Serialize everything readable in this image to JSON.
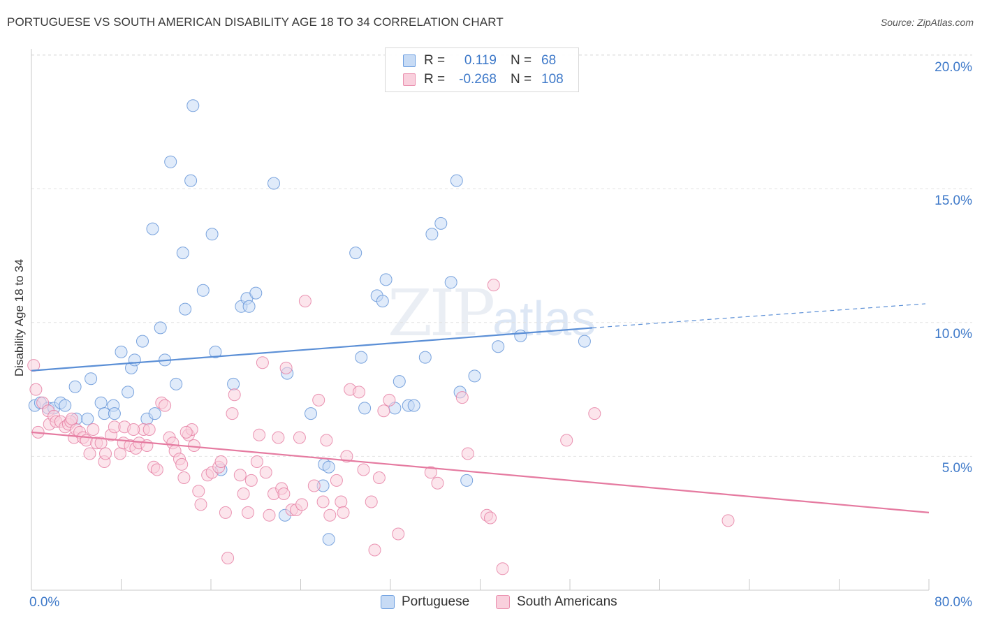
{
  "title": "PORTUGUESE VS SOUTH AMERICAN DISABILITY AGE 18 TO 34 CORRELATION CHART",
  "source": "Source: ZipAtlas.com",
  "watermark": {
    "zip": "ZIP",
    "atlas": "atlas"
  },
  "legend": {
    "rows": [
      {
        "r_label": "R =",
        "r_value": "0.119",
        "n_label": "N =",
        "n_value": "68",
        "color": "#6b9ee0",
        "fill": "#c7dbf5"
      },
      {
        "r_label": "R =",
        "r_value": "-0.268",
        "n_label": "N =",
        "n_value": "108",
        "color": "#ea8fae",
        "fill": "#f9d0dd"
      }
    ]
  },
  "bottom_legend": [
    {
      "label": "Portuguese",
      "color": "#6b9ee0",
      "fill": "#c7dbf5"
    },
    {
      "label": "South Americans",
      "color": "#ea8fae",
      "fill": "#f9d0dd"
    }
  ],
  "axes": {
    "ylabel": "Disability Age 18 to 34",
    "y_ticks": [
      "20.0%",
      "15.0%",
      "10.0%",
      "5.0%"
    ],
    "x_min_label": "0.0%",
    "x_max_label": "80.0%"
  },
  "chart_data": {
    "type": "scatter",
    "title": "PORTUGUESE VS SOUTH AMERICAN DISABILITY AGE 18 TO 34 CORRELATION CHART",
    "xlabel": "",
    "ylabel": "Disability Age 18 to 34",
    "xlim": [
      0,
      80
    ],
    "ylim": [
      0,
      20.5
    ],
    "y_tick_values": [
      5,
      10,
      15,
      20
    ],
    "grid": true,
    "legend_position": "top-center",
    "series": [
      {
        "name": "Portuguese",
        "color": "#5b8fd6",
        "fill": "#c7dbf5",
        "r": 0.119,
        "n": 68,
        "trend": {
          "x0": 0,
          "y0": 8.2,
          "x1": 50,
          "y1": 9.8,
          "dash_to_x": 80,
          "dash_to_y": 10.7
        },
        "points": [
          [
            0.3,
            6.9
          ],
          [
            0.8,
            7.0
          ],
          [
            1.5,
            6.8
          ],
          [
            2.0,
            6.8
          ],
          [
            2.6,
            7.0
          ],
          [
            3.0,
            6.9
          ],
          [
            3.9,
            7.6
          ],
          [
            4.0,
            6.4
          ],
          [
            5.0,
            6.4
          ],
          [
            5.3,
            7.9
          ],
          [
            6.2,
            7.0
          ],
          [
            6.5,
            6.6
          ],
          [
            7.3,
            6.9
          ],
          [
            7.4,
            6.6
          ],
          [
            8.0,
            8.9
          ],
          [
            8.6,
            7.4
          ],
          [
            8.9,
            8.3
          ],
          [
            9.2,
            8.6
          ],
          [
            9.9,
            9.3
          ],
          [
            10.3,
            6.4
          ],
          [
            10.8,
            13.5
          ],
          [
            11.0,
            6.6
          ],
          [
            11.5,
            9.8
          ],
          [
            11.9,
            8.6
          ],
          [
            12.4,
            16.0
          ],
          [
            12.9,
            7.7
          ],
          [
            13.5,
            12.6
          ],
          [
            13.7,
            10.5
          ],
          [
            14.2,
            15.3
          ],
          [
            14.4,
            18.1
          ],
          [
            15.3,
            11.2
          ],
          [
            16.1,
            13.3
          ],
          [
            16.4,
            8.9
          ],
          [
            16.9,
            4.5
          ],
          [
            18.0,
            7.7
          ],
          [
            18.7,
            10.6
          ],
          [
            19.2,
            10.9
          ],
          [
            19.4,
            10.6
          ],
          [
            20.0,
            11.1
          ],
          [
            21.6,
            15.2
          ],
          [
            22.6,
            2.8
          ],
          [
            22.8,
            8.1
          ],
          [
            24.9,
            6.6
          ],
          [
            26.0,
            3.9
          ],
          [
            26.1,
            4.7
          ],
          [
            26.5,
            4.6
          ],
          [
            26.5,
            1.9
          ],
          [
            28.9,
            12.6
          ],
          [
            29.4,
            8.7
          ],
          [
            29.7,
            6.8
          ],
          [
            30.8,
            11.0
          ],
          [
            31.3,
            10.8
          ],
          [
            31.6,
            11.6
          ],
          [
            32.4,
            6.8
          ],
          [
            32.8,
            7.8
          ],
          [
            33.6,
            6.9
          ],
          [
            34.1,
            6.9
          ],
          [
            35.1,
            8.7
          ],
          [
            35.7,
            13.3
          ],
          [
            36.5,
            13.7
          ],
          [
            37.4,
            11.5
          ],
          [
            37.9,
            15.3
          ],
          [
            38.2,
            7.4
          ],
          [
            38.8,
            4.1
          ],
          [
            39.5,
            8.0
          ],
          [
            41.6,
            9.1
          ],
          [
            43.6,
            9.5
          ],
          [
            49.3,
            9.3
          ]
        ]
      },
      {
        "name": "South Americans",
        "color": "#e57aa0",
        "fill": "#f9d0dd",
        "r": -0.268,
        "n": 108,
        "trend": {
          "x0": 0,
          "y0": 5.9,
          "x1": 80,
          "y1": 2.9
        },
        "points": [
          [
            0.2,
            8.4
          ],
          [
            0.4,
            7.5
          ],
          [
            1.0,
            7.0
          ],
          [
            1.5,
            6.7
          ],
          [
            1.6,
            6.2
          ],
          [
            2.0,
            6.5
          ],
          [
            2.2,
            6.3
          ],
          [
            2.6,
            6.3
          ],
          [
            3.0,
            6.1
          ],
          [
            3.3,
            6.2
          ],
          [
            3.5,
            6.3
          ],
          [
            3.8,
            5.7
          ],
          [
            4.0,
            6.0
          ],
          [
            4.3,
            5.9
          ],
          [
            4.6,
            5.7
          ],
          [
            4.9,
            5.6
          ],
          [
            5.2,
            5.1
          ],
          [
            5.5,
            6.0
          ],
          [
            5.8,
            5.5
          ],
          [
            6.2,
            5.5
          ],
          [
            6.5,
            4.8
          ],
          [
            6.6,
            5.1
          ],
          [
            7.1,
            5.8
          ],
          [
            7.4,
            6.1
          ],
          [
            7.9,
            5.1
          ],
          [
            8.2,
            5.5
          ],
          [
            8.3,
            6.1
          ],
          [
            8.8,
            5.4
          ],
          [
            9.3,
            5.3
          ],
          [
            9.6,
            5.5
          ],
          [
            10.0,
            6.0
          ],
          [
            10.3,
            5.4
          ],
          [
            10.5,
            6.0
          ],
          [
            10.9,
            4.6
          ],
          [
            11.2,
            4.5
          ],
          [
            11.6,
            7.0
          ],
          [
            11.9,
            6.9
          ],
          [
            12.3,
            5.7
          ],
          [
            12.6,
            5.5
          ],
          [
            12.8,
            5.2
          ],
          [
            13.2,
            4.9
          ],
          [
            13.4,
            4.7
          ],
          [
            13.6,
            4.2
          ],
          [
            14.0,
            5.8
          ],
          [
            14.3,
            6.0
          ],
          [
            14.5,
            5.4
          ],
          [
            14.9,
            3.7
          ],
          [
            15.1,
            3.2
          ],
          [
            15.7,
            4.3
          ],
          [
            16.1,
            4.4
          ],
          [
            16.7,
            4.6
          ],
          [
            16.9,
            4.8
          ],
          [
            17.3,
            2.9
          ],
          [
            17.5,
            1.2
          ],
          [
            17.9,
            6.6
          ],
          [
            18.1,
            7.3
          ],
          [
            18.6,
            4.3
          ],
          [
            18.9,
            3.6
          ],
          [
            19.3,
            2.9
          ],
          [
            19.6,
            4.1
          ],
          [
            20.1,
            4.8
          ],
          [
            20.3,
            5.8
          ],
          [
            20.6,
            8.5
          ],
          [
            20.9,
            4.4
          ],
          [
            21.2,
            2.8
          ],
          [
            21.6,
            3.6
          ],
          [
            22.0,
            5.7
          ],
          [
            22.3,
            3.8
          ],
          [
            22.5,
            3.6
          ],
          [
            22.7,
            8.3
          ],
          [
            23.2,
            3.0
          ],
          [
            23.6,
            3.0
          ],
          [
            23.9,
            5.7
          ],
          [
            24.1,
            3.2
          ],
          [
            24.4,
            10.8
          ],
          [
            25.2,
            3.9
          ],
          [
            25.6,
            7.1
          ],
          [
            26.0,
            3.3
          ],
          [
            26.3,
            5.6
          ],
          [
            26.6,
            2.8
          ],
          [
            27.2,
            4.1
          ],
          [
            27.6,
            3.3
          ],
          [
            27.8,
            2.9
          ],
          [
            28.1,
            5.0
          ],
          [
            28.4,
            7.5
          ],
          [
            29.2,
            7.4
          ],
          [
            29.6,
            4.5
          ],
          [
            30.3,
            3.3
          ],
          [
            30.6,
            1.5
          ],
          [
            31.0,
            4.2
          ],
          [
            31.4,
            6.7
          ],
          [
            31.9,
            7.1
          ],
          [
            32.7,
            2.1
          ],
          [
            35.6,
            4.4
          ],
          [
            36.2,
            4.0
          ],
          [
            38.4,
            7.2
          ],
          [
            38.9,
            5.1
          ],
          [
            40.6,
            2.8
          ],
          [
            40.9,
            2.7
          ],
          [
            41.2,
            11.4
          ],
          [
            42.0,
            0.8
          ],
          [
            47.7,
            5.6
          ],
          [
            50.2,
            6.6
          ],
          [
            62.1,
            2.6
          ],
          [
            0.6,
            5.9
          ],
          [
            3.6,
            6.4
          ],
          [
            9.1,
            6.0
          ],
          [
            13.8,
            5.9
          ]
        ]
      }
    ]
  }
}
